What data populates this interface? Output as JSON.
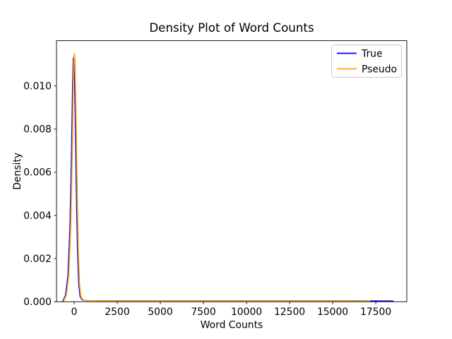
{
  "chart_data": {
    "type": "line",
    "title": "Density Plot of Word Counts",
    "xlabel": "Word Counts",
    "ylabel": "Density",
    "xlim": [
      -1025,
      19300
    ],
    "ylim": [
      0,
      0.0121
    ],
    "grid": false,
    "background_color": "#ffffff",
    "spine_color": "#000000",
    "xticks": [
      {
        "value": 0,
        "label": "0"
      },
      {
        "value": 2500,
        "label": "2500"
      },
      {
        "value": 5000,
        "label": "5000"
      },
      {
        "value": 7500,
        "label": "7500"
      },
      {
        "value": 10000,
        "label": "10000"
      },
      {
        "value": 12500,
        "label": "12500"
      },
      {
        "value": 15000,
        "label": "15000"
      },
      {
        "value": 17500,
        "label": "17500"
      }
    ],
    "yticks": [
      {
        "value": 0.0,
        "label": "0.000"
      },
      {
        "value": 0.002,
        "label": "0.002"
      },
      {
        "value": 0.004,
        "label": "0.004"
      },
      {
        "value": 0.006,
        "label": "0.006"
      },
      {
        "value": 0.008,
        "label": "0.008"
      },
      {
        "value": 0.01,
        "label": "0.010"
      }
    ],
    "legend": {
      "position": "upper right",
      "border_color": "#cccccc",
      "entries": [
        {
          "name": "True",
          "color": "#0000ff"
        },
        {
          "name": "Pseudo",
          "color": "#ffa500"
        }
      ]
    },
    "series": [
      {
        "name": "True",
        "color": "#0000ff",
        "peak": {
          "x": -45,
          "y": 0.0113
        },
        "points": [
          [
            -660,
            2e-05
          ],
          [
            -500,
            0.0003
          ],
          [
            -360,
            0.0012
          ],
          [
            -240,
            0.0035
          ],
          [
            -150,
            0.007
          ],
          [
            -90,
            0.01
          ],
          [
            -45,
            0.0113
          ],
          [
            5,
            0.0111
          ],
          [
            55,
            0.009
          ],
          [
            125,
            0.0053
          ],
          [
            195,
            0.0024
          ],
          [
            265,
            0.00085
          ],
          [
            345,
            0.00024
          ],
          [
            470,
            8e-05
          ],
          [
            720,
            5e-05
          ],
          [
            1500,
            4e-05
          ],
          [
            4000,
            4e-05
          ],
          [
            8000,
            4e-05
          ],
          [
            12000,
            4e-05
          ],
          [
            16000,
            4e-05
          ],
          [
            18500,
            3e-05
          ]
        ]
      },
      {
        "name": "Pseudo",
        "color": "#ffa500",
        "peak": {
          "x": 0,
          "y": 0.0115
        },
        "points": [
          [
            -615,
            2e-05
          ],
          [
            -455,
            0.0003
          ],
          [
            -315,
            0.0012
          ],
          [
            -195,
            0.0035
          ],
          [
            -105,
            0.007
          ],
          [
            -45,
            0.0102
          ],
          [
            0,
            0.0115
          ],
          [
            50,
            0.0112
          ],
          [
            100,
            0.0091
          ],
          [
            170,
            0.0054
          ],
          [
            240,
            0.0024
          ],
          [
            310,
            0.00085
          ],
          [
            390,
            0.00024
          ],
          [
            515,
            8e-05
          ],
          [
            765,
            5e-05
          ],
          [
            1600,
            4e-05
          ],
          [
            4000,
            4e-05
          ],
          [
            8000,
            4e-05
          ],
          [
            12000,
            4e-05
          ],
          [
            16000,
            4e-05
          ],
          [
            17150,
            3e-05
          ]
        ]
      }
    ]
  }
}
